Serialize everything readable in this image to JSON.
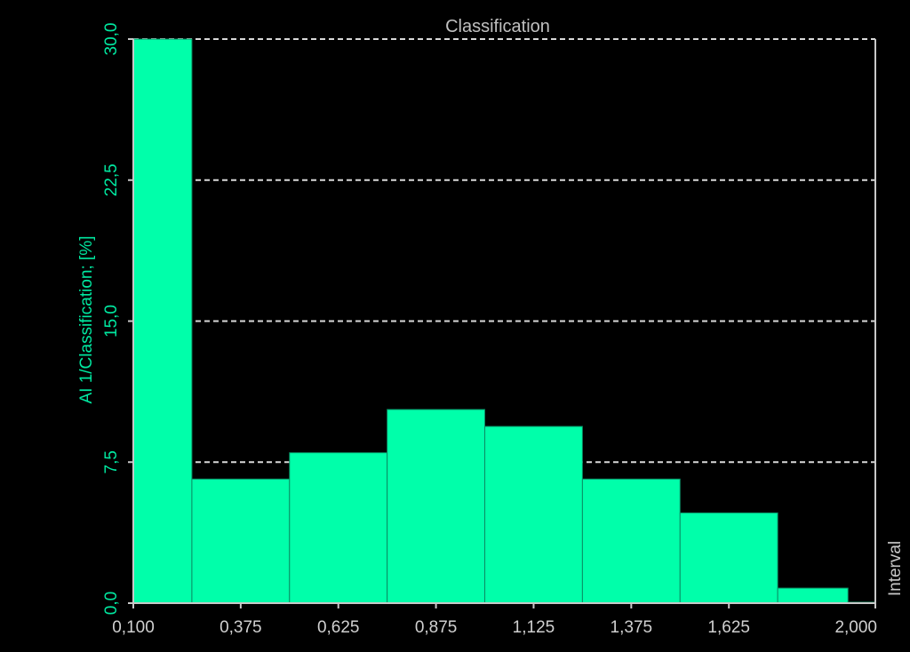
{
  "chart_data": {
    "type": "bar",
    "title": "Classification",
    "ylabel": "AI 1/Classification; [%]",
    "xlabel": "Interval",
    "ylim": [
      0,
      30
    ],
    "yticks": [
      "0,0",
      "7,5",
      "15,0",
      "22,5",
      "30,0"
    ],
    "ytick_values": [
      0,
      7.5,
      15,
      22.5,
      30
    ],
    "xticks": [
      "0,100",
      "0,375",
      "0,625",
      "0,875",
      "1,125",
      "1,375",
      "1,625",
      "2,000"
    ],
    "xtick_values": [
      0.1,
      0.375,
      0.625,
      0.875,
      1.125,
      1.375,
      1.625,
      2.0
    ],
    "bins": [
      {
        "from": 0.1,
        "to": 0.25,
        "value": 30.0
      },
      {
        "from": 0.25,
        "to": 0.5,
        "value": 6.6
      },
      {
        "from": 0.5,
        "to": 0.75,
        "value": 8.0
      },
      {
        "from": 0.75,
        "to": 1.0,
        "value": 10.3
      },
      {
        "from": 1.0,
        "to": 1.25,
        "value": 9.4
      },
      {
        "from": 1.25,
        "to": 1.5,
        "value": 6.6
      },
      {
        "from": 1.5,
        "to": 1.75,
        "value": 4.8
      },
      {
        "from": 1.75,
        "to": 1.93,
        "value": 0.8
      },
      {
        "from": 1.93,
        "to": 2.0,
        "value": 0.05
      }
    ],
    "grid": true,
    "colors": {
      "bar": "#00ffaa",
      "bar_edge": "#0a8c63",
      "axis": "#c8c8c8",
      "ytick_text": "#00e8a0",
      "xtick_text": "#d0d0d0",
      "title_text": "#c0c0c0",
      "grid": "#d8d8d8",
      "background": "#000000"
    }
  }
}
